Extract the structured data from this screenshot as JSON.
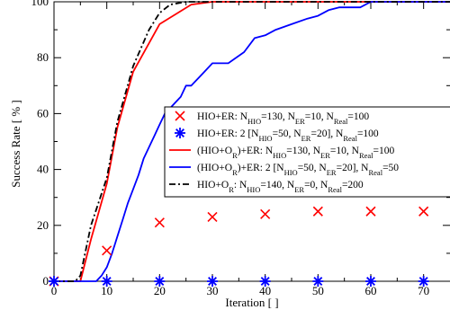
{
  "chart_data": {
    "type": "line",
    "xlabel": "Iteration [ ]",
    "ylabel": "Success Rate [ % ]",
    "xlim": [
      0,
      75
    ],
    "ylim": [
      0,
      100
    ],
    "xticks": [
      "0",
      "10",
      "20",
      "30",
      "40",
      "50",
      "60",
      "70"
    ],
    "yticks": [
      "0",
      "20",
      "40",
      "60",
      "80",
      "100"
    ],
    "grid": false,
    "legend_position": "center-right",
    "series": [
      {
        "name": "HIO+ER: N_HIO=130, N_ER=10, N_Real=100",
        "legend": [
          {
            "t": "HIO+ER: N"
          },
          {
            "t": "HIO",
            "s": "sub"
          },
          {
            "t": "=130, N"
          },
          {
            "t": "ER",
            "s": "sub"
          },
          {
            "t": "=10, N"
          },
          {
            "t": "Real",
            "s": "sub"
          },
          {
            "t": "=100"
          }
        ],
        "style": "marker",
        "marker": "x",
        "color": "#ff0000",
        "x": [
          0,
          10,
          20,
          30,
          40,
          50,
          60,
          70
        ],
        "y": [
          0,
          11,
          21,
          23,
          24,
          25,
          25,
          25
        ]
      },
      {
        "name": "HIO+ER: 2 [N_HIO=50, N_ER=20], N_Real=100",
        "legend": [
          {
            "t": "HIO+ER: 2 [N"
          },
          {
            "t": "HIO",
            "s": "sub"
          },
          {
            "t": "=50, N"
          },
          {
            "t": "ER",
            "s": "sub"
          },
          {
            "t": "=20], N"
          },
          {
            "t": "Real",
            "s": "sub"
          },
          {
            "t": "=100"
          }
        ],
        "style": "marker",
        "marker": "asterisk",
        "color": "#0000ff",
        "x": [
          0,
          10,
          20,
          30,
          40,
          50,
          60,
          70
        ],
        "y": [
          0,
          0,
          0,
          0,
          0,
          0,
          0,
          0
        ]
      },
      {
        "name": "(HIO+O_R)+ER: N_HIO=130, N_ER=10, N_Real=100",
        "legend": [
          {
            "t": "(HIO+O"
          },
          {
            "t": "R",
            "s": "sub"
          },
          {
            "t": ")+ER: N"
          },
          {
            "t": "HIO",
            "s": "sub"
          },
          {
            "t": "=130, N"
          },
          {
            "t": "ER",
            "s": "sub"
          },
          {
            "t": "=10, N"
          },
          {
            "t": "Real",
            "s": "sub"
          },
          {
            "t": "=100"
          }
        ],
        "style": "solid",
        "color": "#ff0000",
        "x": [
          0,
          5,
          7,
          10,
          12,
          15,
          20,
          26,
          30,
          75
        ],
        "y": [
          0,
          0,
          15,
          35,
          55,
          75,
          92,
          99,
          100,
          100
        ]
      },
      {
        "name": "(HIO+O_R)+ER: 2 [N_HIO=50, N_ER=20], N_Real=50",
        "legend": [
          {
            "t": "(HIO+O"
          },
          {
            "t": "R",
            "s": "sub"
          },
          {
            "t": ")+ER: 2 [N"
          },
          {
            "t": "HIO",
            "s": "sub"
          },
          {
            "t": "=50, N"
          },
          {
            "t": "ER",
            "s": "sub"
          },
          {
            "t": "=20], N"
          },
          {
            "t": "Real",
            "s": "sub"
          },
          {
            "t": "=50"
          }
        ],
        "style": "solid",
        "color": "#0000ff",
        "x": [
          0,
          8,
          9,
          10,
          11,
          12,
          13,
          14,
          15,
          16,
          17,
          18,
          19,
          20,
          21,
          22,
          23,
          24,
          25,
          26,
          28,
          30,
          33,
          36,
          38,
          40,
          42,
          45,
          48,
          50,
          52,
          54,
          56,
          58,
          60,
          75
        ],
        "y": [
          0,
          0,
          2,
          5,
          10,
          16,
          22,
          28,
          33,
          38,
          44,
          48,
          52,
          56,
          60,
          62,
          64,
          66,
          70,
          70,
          74,
          78,
          78,
          82,
          87,
          88,
          90,
          92,
          94,
          95,
          97,
          98,
          98,
          98,
          100,
          100
        ]
      },
      {
        "name": "HIO+O_R: N_HIO=140, N_ER=0, N_Real=200",
        "legend": [
          {
            "t": "HIO+O"
          },
          {
            "t": "R",
            "s": "sub"
          },
          {
            "t": ": N"
          },
          {
            "t": "HIO",
            "s": "sub"
          },
          {
            "t": "=140, N"
          },
          {
            "t": "ER",
            "s": "sub"
          },
          {
            "t": "=0, N"
          },
          {
            "t": "Real",
            "s": "sub"
          },
          {
            "t": "=200"
          }
        ],
        "style": "dashdot",
        "color": "#000000",
        "x": [
          0,
          4,
          5,
          7,
          10,
          12,
          15,
          18,
          20,
          22,
          25,
          28,
          75
        ],
        "y": [
          0,
          0,
          2,
          20,
          37,
          57,
          77,
          90,
          96,
          99,
          100,
          100,
          100
        ]
      }
    ]
  }
}
